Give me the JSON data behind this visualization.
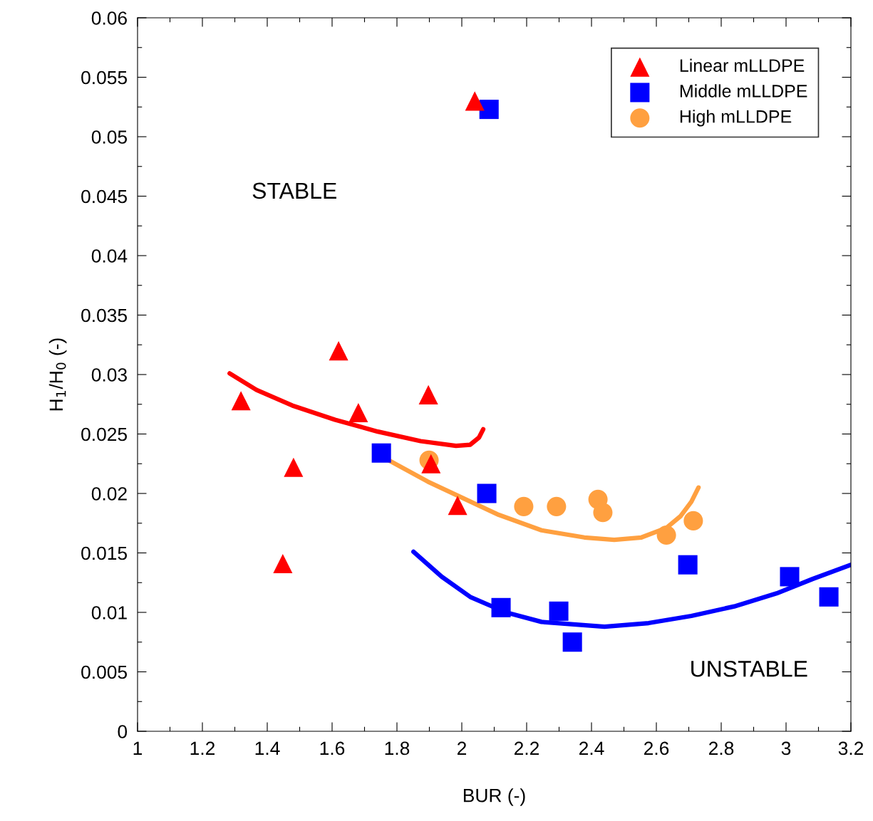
{
  "chart_data": {
    "type": "scatter",
    "xlabel": "BUR (-)",
    "ylabel": "H$_{1}$/H$_{0}$ (-)",
    "xlim": [
      1,
      3.2
    ],
    "xticks": [
      1,
      {
        "value": 1.1,
        "label": null
      },
      1.2,
      {
        "value": 1.3,
        "label": null
      },
      1.4,
      {
        "value": 1.5,
        "label": null
      },
      1.6,
      {
        "value": 1.7,
        "label": null
      },
      1.8,
      {
        "value": 1.9,
        "label": null
      },
      2,
      {
        "value": 2.1,
        "label": null
      },
      2.2,
      {
        "value": 2.3,
        "label": null
      },
      2.4,
      {
        "value": 2.5,
        "label": null
      },
      2.6,
      {
        "value": 2.7,
        "label": null
      },
      2.8,
      {
        "value": 2.9,
        "label": null
      },
      3,
      {
        "value": 3.1,
        "label": null
      },
      3.2
    ],
    "ylim": [
      0,
      0.06
    ],
    "yticks": [
      0,
      {
        "value": 0.0025,
        "label": null
      },
      0.005,
      {
        "value": 0.0075,
        "label": null
      },
      0.01,
      {
        "value": 0.0125,
        "label": null
      },
      0.015,
      {
        "value": 0.0175,
        "label": null
      },
      0.02,
      {
        "value": 0.0225,
        "label": null
      },
      0.025,
      {
        "value": 0.0275,
        "label": null
      },
      0.03,
      {
        "value": 0.0325,
        "label": null
      },
      0.035,
      {
        "value": 0.0375,
        "label": null
      },
      0.04,
      {
        "value": 0.0425,
        "label": null
      },
      0.045,
      {
        "value": 0.0475,
        "label": null
      },
      0.05,
      {
        "value": 0.0525,
        "label": null
      },
      0.055,
      {
        "value": 0.0575,
        "label": null
      },
      0.06
    ],
    "grid": false,
    "legend": "top right",
    "annotations": [
      "STABLE",
      "UNSTABLE"
    ],
    "series": [
      {
        "name": "Linear mLLDPE",
        "marker": "triangle",
        "color": "#ff0000",
        "x": [
          1.319,
          1.448,
          1.481,
          1.62,
          1.681,
          1.897,
          1.905,
          1.987,
          2.04
        ],
        "values": [
          0.0278,
          0.0141,
          0.0222,
          0.032,
          0.0268,
          0.0283,
          0.0225,
          0.019,
          0.053
        ]
      },
      {
        "name": "Middle mLLDPE",
        "marker": "square",
        "color": "#0000ff",
        "x": [
          2.084,
          1.752,
          2.077,
          2.121,
          2.299,
          2.341,
          2.697,
          3.011,
          3.132
        ],
        "values": [
          0.0523,
          0.0234,
          0.02,
          0.0104,
          0.0101,
          0.0075,
          0.014,
          0.013,
          0.0113
        ]
      },
      {
        "name": "High mLLDPE",
        "marker": "circle",
        "color": "#ffa040",
        "x": [
          1.899,
          2.191,
          2.292,
          2.42,
          2.435,
          2.631,
          2.714
        ],
        "values": [
          0.0228,
          0.0189,
          0.0189,
          0.0195,
          0.0184,
          0.0165,
          0.0177
        ]
      },
      {
        "type": "line",
        "color": "#ff0000",
        "x": [
          1.284,
          1.367,
          1.477,
          1.609,
          1.741,
          1.873,
          1.982,
          2.026,
          2.053,
          2.066
        ],
        "values": [
          0.0301,
          0.0287,
          0.0274,
          0.0262,
          0.0252,
          0.0244,
          0.024,
          0.0241,
          0.0247,
          0.0254
        ]
      },
      {
        "type": "line",
        "color": "#ffa040",
        "x": [
          1.774,
          1.895,
          2.004,
          2.114,
          2.246,
          2.378,
          2.47,
          2.554,
          2.631,
          2.675,
          2.708,
          2.73
        ],
        "values": [
          0.0228,
          0.021,
          0.0196,
          0.0182,
          0.0169,
          0.0163,
          0.0161,
          0.0163,
          0.0171,
          0.0181,
          0.0193,
          0.0205
        ]
      },
      {
        "type": "line",
        "color": "#0000ff",
        "x": [
          1.851,
          1.938,
          2.026,
          2.136,
          2.246,
          2.44,
          2.576,
          2.708,
          2.84,
          2.971,
          3.081,
          3.2
        ],
        "values": [
          0.0151,
          0.013,
          0.0113,
          0.01,
          0.0092,
          0.0088,
          0.0091,
          0.0097,
          0.0105,
          0.0116,
          0.0128,
          0.014
        ]
      }
    ]
  }
}
